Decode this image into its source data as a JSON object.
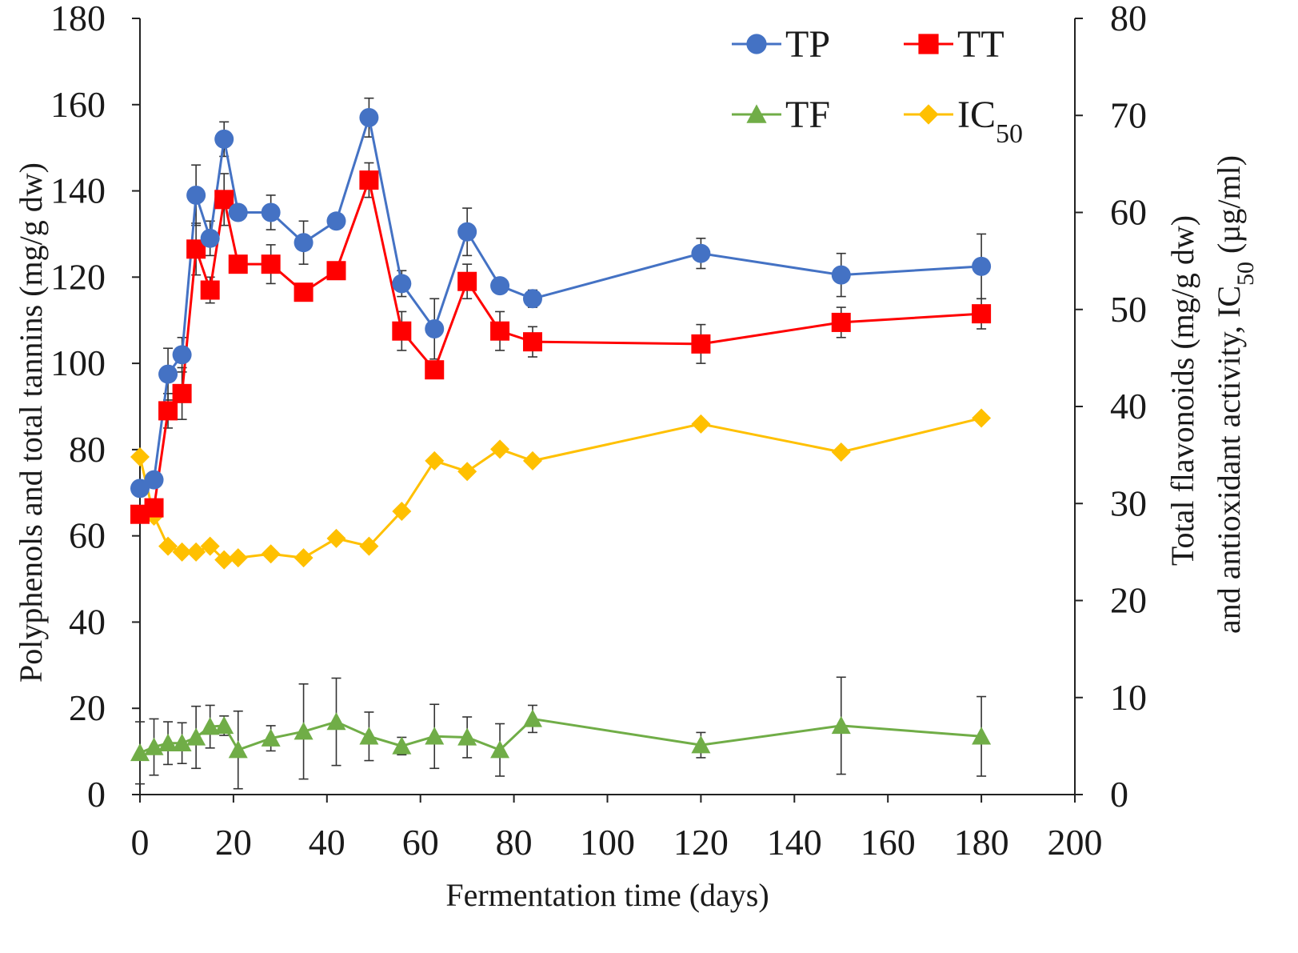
{
  "chart_data": {
    "type": "line",
    "title": "",
    "xlabel": "Fermentation time (days)",
    "ylabel": "Polyphenols and total tannins (mg/g dw)",
    "y2label_line1": "Total flavonoids (mg/g dw)",
    "y2label_line2_pre": "and antioxidant activity, IC",
    "y2label_line2_sub": "50",
    "y2label_line2_post": " (µg/ml)",
    "xlim": [
      0,
      200
    ],
    "ylim": [
      0,
      180
    ],
    "y2lim": [
      0,
      80
    ],
    "x_ticks": [
      0,
      20,
      40,
      60,
      80,
      100,
      120,
      140,
      160,
      180,
      200
    ],
    "y_ticks": [
      0,
      20,
      40,
      60,
      80,
      100,
      120,
      140,
      160,
      180
    ],
    "y2_ticks": [
      0,
      10,
      20,
      30,
      40,
      50,
      60,
      70,
      80
    ],
    "x": [
      0,
      3,
      6,
      9,
      12,
      15,
      18,
      21,
      28,
      35,
      42,
      49,
      56,
      63,
      70,
      77,
      84,
      120,
      150,
      180
    ],
    "series": [
      {
        "name": "TP",
        "sub": "",
        "axis": "left",
        "color": "#4472C4",
        "marker": "circle",
        "values": [
          71,
          73,
          97.5,
          102,
          139,
          129,
          152,
          135,
          135,
          128,
          133,
          157,
          118.5,
          108,
          130.5,
          118,
          115,
          125.5,
          120.5,
          122.5
        ],
        "errors": [
          0,
          0,
          6,
          4,
          7,
          4,
          4,
          0,
          4,
          5,
          0,
          4.5,
          3,
          7,
          5.5,
          0,
          2,
          3.5,
          5,
          7.5
        ]
      },
      {
        "name": "TT",
        "sub": "",
        "axis": "left",
        "color": "#FF0000",
        "marker": "square",
        "values": [
          65,
          66.5,
          89,
          93,
          126.5,
          117,
          138,
          123,
          123,
          116.5,
          121.5,
          142.5,
          107.5,
          98.5,
          119,
          107.5,
          105,
          104.5,
          109.5,
          111.5
        ],
        "errors": [
          0,
          0,
          4,
          6,
          6,
          3,
          6,
          0,
          4.5,
          0,
          0,
          4,
          4.5,
          0,
          4,
          4.5,
          3.5,
          4.5,
          3.5,
          3.5
        ]
      },
      {
        "name": "TF",
        "sub": "",
        "axis": "right",
        "color": "#70AD47",
        "marker": "triangle",
        "values": [
          4.3,
          4.9,
          5.3,
          5.3,
          5.9,
          7.0,
          7.1,
          4.6,
          5.8,
          6.5,
          7.5,
          6.0,
          5.0,
          6.0,
          5.9,
          4.6,
          7.8,
          5.1,
          7.1,
          6.0
        ],
        "errors": [
          3.2,
          2.9,
          2.2,
          2.1,
          3.2,
          2.2,
          1.0,
          4.0,
          1.3,
          4.9,
          4.5,
          2.5,
          0.9,
          3.3,
          2.1,
          2.7,
          1.4,
          1.3,
          5.0,
          4.1
        ]
      },
      {
        "name": "IC",
        "sub": "50",
        "axis": "right",
        "color": "#FFC000",
        "marker": "diamond",
        "values": [
          34.8,
          28.7,
          25.6,
          25.0,
          25.0,
          25.6,
          24.2,
          24.4,
          24.8,
          24.4,
          26.4,
          25.6,
          29.2,
          34.4,
          33.3,
          35.6,
          34.4,
          38.2,
          35.3,
          38.8
        ],
        "errors": []
      }
    ],
    "legend_placement": "top-right, two columns",
    "grid": false
  }
}
